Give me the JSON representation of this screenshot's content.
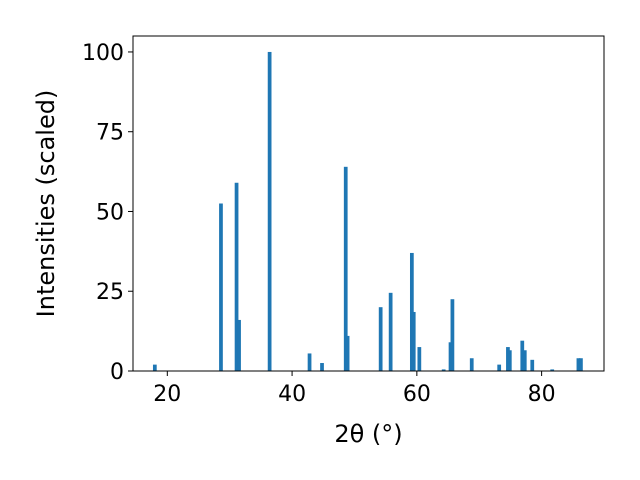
{
  "chart_data": {
    "type": "bar",
    "xlabel": "2θ (°)",
    "ylabel": "Intensities (scaled)",
    "xlim": [
      14.5,
      90.0
    ],
    "ylim": [
      0,
      105.0
    ],
    "grid": false,
    "bar_color": "#1f77b4",
    "bar_width": 0.6,
    "x_ticks": [
      {
        "value": 20,
        "label": "20"
      },
      {
        "value": 40,
        "label": "40"
      },
      {
        "value": 60,
        "label": "60"
      },
      {
        "value": 80,
        "label": "80"
      }
    ],
    "y_ticks": [
      {
        "value": 0,
        "label": "0"
      },
      {
        "value": 25,
        "label": "25"
      },
      {
        "value": 50,
        "label": "50"
      },
      {
        "value": 75,
        "label": "75"
      },
      {
        "value": 100,
        "label": "100"
      }
    ],
    "x": [
      18.0,
      28.6,
      31.1,
      31.5,
      36.4,
      42.8,
      44.8,
      48.6,
      48.9,
      54.2,
      55.8,
      59.2,
      59.5,
      60.4,
      64.3,
      65.4,
      65.7,
      68.8,
      73.2,
      74.6,
      74.9,
      76.9,
      77.3,
      78.5,
      81.7,
      85.9,
      86.3
    ],
    "values": [
      2.0,
      52.5,
      59.0,
      16.0,
      100.0,
      5.5,
      2.5,
      64.0,
      11.0,
      20.0,
      24.5,
      37.0,
      18.5,
      7.5,
      0.5,
      9.0,
      22.5,
      4.0,
      2.0,
      7.5,
      6.5,
      9.5,
      6.5,
      3.5,
      0.5,
      4.0,
      4.0
    ]
  }
}
